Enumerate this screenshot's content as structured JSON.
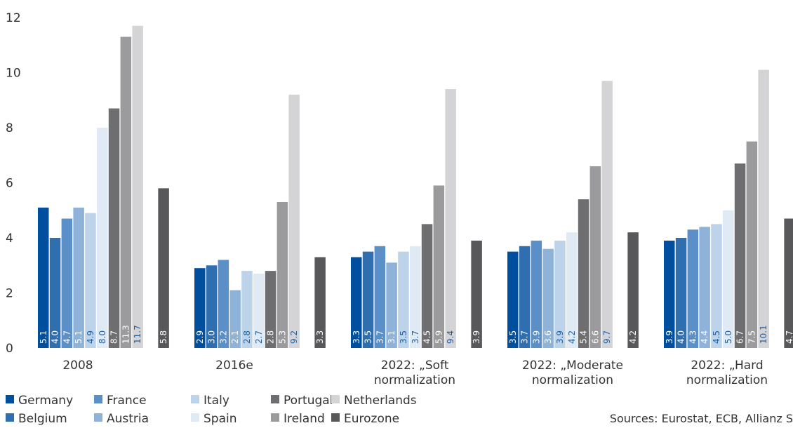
{
  "chart_data": {
    "type": "bar",
    "categories": [
      [
        "2008"
      ],
      [
        "2016e"
      ],
      [
        "2022: „Soft",
        "normalization"
      ],
      [
        "2022: „Moderate",
        "normalization"
      ],
      [
        "2022: „Hard",
        "normalization"
      ]
    ],
    "ylim": [
      0,
      12
    ],
    "yticks": [
      "0",
      "2",
      "4",
      "6",
      "8",
      "10",
      "12"
    ],
    "grid": false,
    "series": [
      {
        "name": "Germany",
        "color": "#004f9f",
        "values": [
          5.1,
          2.9,
          3.3,
          3.5,
          3.9
        ],
        "labels": [
          "5.1",
          "2.9",
          "3.3",
          "3.5",
          "3.9"
        ]
      },
      {
        "name": "Belgium",
        "color": "#2f6fb0",
        "values": [
          4.0,
          3.0,
          3.5,
          3.7,
          4.0
        ],
        "labels": [
          "4.0",
          "3.0",
          "3.5",
          "3.7",
          "4.0"
        ]
      },
      {
        "name": "France",
        "color": "#5b8fc7",
        "values": [
          4.7,
          3.2,
          3.7,
          3.9,
          4.3
        ],
        "labels": [
          "4.7",
          "3.2",
          "3.7",
          "3.9",
          "4.3"
        ]
      },
      {
        "name": "Austria",
        "color": "#8fb2d9",
        "values": [
          5.1,
          2.1,
          3.1,
          3.6,
          4.4
        ],
        "labels": [
          "5.1",
          "2.1",
          "3.1",
          "3.6",
          "4.4"
        ]
      },
      {
        "name": "Italy",
        "color": "#bcd3ea",
        "values": [
          4.9,
          2.8,
          3.5,
          3.9,
          4.5
        ],
        "labels": [
          "4.9",
          "2.8",
          "3.5",
          "3.9",
          "4.5"
        ]
      },
      {
        "name": "Spain",
        "color": "#dfeaf5",
        "values": [
          8.0,
          2.7,
          3.7,
          4.2,
          5.0
        ],
        "labels": [
          "8.0",
          "2.7",
          "3.7",
          "4.2",
          "5.0"
        ]
      },
      {
        "name": "Portugal",
        "color": "#6e6e70",
        "values": [
          8.7,
          2.8,
          4.5,
          5.4,
          6.7
        ],
        "labels": [
          "8.7",
          "2.8",
          "4.5",
          "5.4",
          "6.7"
        ]
      },
      {
        "name": "Ireland",
        "color": "#9b9b9d",
        "values": [
          11.3,
          5.3,
          5.9,
          6.6,
          7.5
        ],
        "labels": [
          "11.3",
          "5.3",
          "5.9",
          "6.6",
          "7.5"
        ]
      },
      {
        "name": "Netherlands",
        "color": "#d4d4d6",
        "values": [
          11.7,
          9.2,
          9.4,
          9.7,
          10.1
        ],
        "labels": [
          "11.7",
          "9.2",
          "9.4",
          "9.7",
          "10.1"
        ]
      },
      {
        "name": "Eurozone",
        "color": "#58585a",
        "values": [
          5.8,
          3.3,
          3.9,
          4.2,
          4.7
        ],
        "labels": [
          "5.8",
          "3.3",
          "3.9",
          "4.2",
          "4.7"
        ]
      }
    ],
    "legend_rows": [
      [
        "Germany",
        "France",
        "Italy",
        "Portugal",
        "Netherlands"
      ],
      [
        "Belgium",
        "Austria",
        "Spain",
        "Ireland",
        "Eurozone"
      ]
    ],
    "source": "Sources: Eurostat, ECB, Allianz S"
  }
}
